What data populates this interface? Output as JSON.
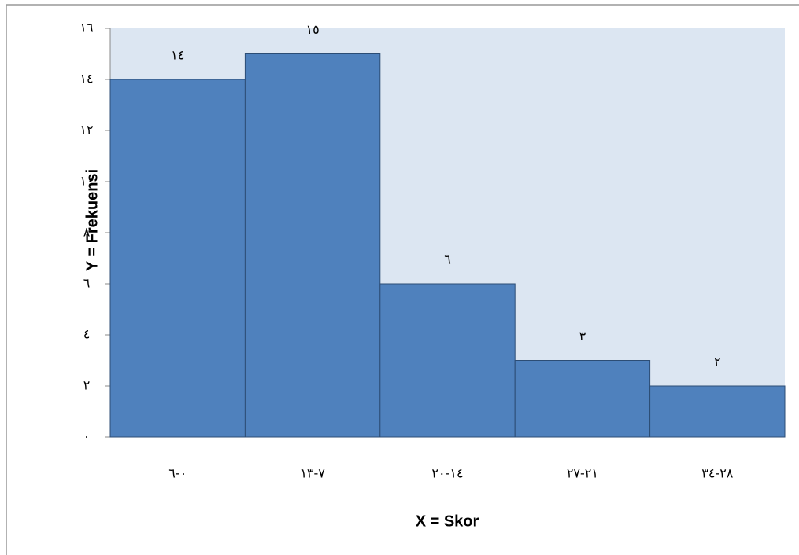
{
  "chart_data": {
    "type": "bar",
    "categories": [
      "٠-٦",
      "٧-١٣",
      "١٤-٢٠",
      "٢١-٢٧",
      "٢٨-٣٤"
    ],
    "values": [
      14,
      15,
      6,
      3,
      2
    ],
    "value_labels": [
      "١٤",
      "١٥",
      "٦",
      "٣",
      "٢"
    ],
    "color": "#4f81bd",
    "xlabel": "X = Skor",
    "ylabel": "Y = Frekuensi",
    "ylim": [
      0,
      16
    ],
    "yticks": [
      {
        "value": 0,
        "label": "٠"
      },
      {
        "value": 2,
        "label": "٢"
      },
      {
        "value": 4,
        "label": "٤"
      },
      {
        "value": 6,
        "label": "٦"
      },
      {
        "value": 8,
        "label": "٨"
      },
      {
        "value": 10,
        "label": "١٠"
      },
      {
        "value": 12,
        "label": "١٢"
      },
      {
        "value": 14,
        "label": "١٤"
      },
      {
        "value": 16,
        "label": "١٦"
      }
    ],
    "grid": false
  }
}
